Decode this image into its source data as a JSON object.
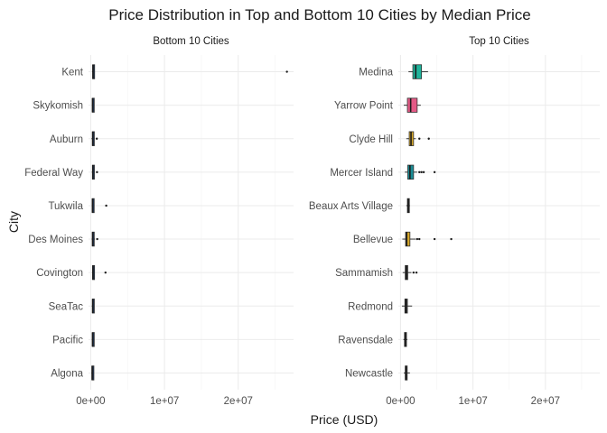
{
  "chart_data": {
    "type": "boxplot",
    "title": "Price Distribution in Top and Bottom 10 Cities by Median Price",
    "xlabel": "Price (USD)",
    "ylabel": "City",
    "xlim": [
      -300000,
      27500000
    ],
    "x_ticks": [
      0,
      10000000,
      20000000
    ],
    "x_tick_labels": [
      "0e+00",
      "1e+07",
      "2e+07"
    ],
    "grid": true,
    "legend": "none",
    "panels": [
      {
        "name": "Bottom 10 Cities",
        "cities": [
          {
            "city": "Kent",
            "stats": [
              180000,
              260000,
              310000,
              370000,
              520000
            ],
            "outliers": [
              26600000
            ],
            "color": "#1d3557"
          },
          {
            "city": "Skykomish",
            "stats": [
              170000,
              210000,
              250000,
              300000,
              380000
            ],
            "outliers": [],
            "color": "#1d3557"
          },
          {
            "city": "Auburn",
            "stats": [
              100000,
              220000,
              270000,
              340000,
              520000
            ],
            "outliers": [
              820000
            ],
            "color": "#1d3557"
          },
          {
            "city": "Federal Way",
            "stats": [
              150000,
              230000,
              280000,
              350000,
              540000
            ],
            "outliers": [
              850000
            ],
            "color": "#1d3557"
          },
          {
            "city": "Tukwila",
            "stats": [
              140000,
              200000,
              240000,
              300000,
              420000
            ],
            "outliers": [
              2100000
            ],
            "color": "#1d3557"
          },
          {
            "city": "Des Moines",
            "stats": [
              120000,
              210000,
              260000,
              340000,
              560000
            ],
            "outliers": [
              880000
            ],
            "color": "#1d3557"
          },
          {
            "city": "Covington",
            "stats": [
              170000,
              250000,
              300000,
              360000,
              500000
            ],
            "outliers": [
              2000000
            ],
            "color": "#1d3557"
          },
          {
            "city": "SeaTac",
            "stats": [
              140000,
              220000,
              270000,
              330000,
              480000
            ],
            "outliers": [],
            "color": "#1d3557"
          },
          {
            "city": "Pacific",
            "stats": [
              150000,
              210000,
              250000,
              300000,
              390000
            ],
            "outliers": [],
            "color": "#1d3557"
          },
          {
            "city": "Algona",
            "stats": [
              100000,
              160000,
              200000,
              250000,
              330000
            ],
            "outliers": [],
            "color": "#1d3557"
          }
        ]
      },
      {
        "name": "Top 10 Cities",
        "cities": [
          {
            "city": "Medina",
            "stats": [
              1100000,
              1700000,
              2100000,
              2900000,
              3800000
            ],
            "outliers": [],
            "color": "#1fb39a"
          },
          {
            "city": "Yarrow Point",
            "stats": [
              450000,
              950000,
              1400000,
              2300000,
              2800000
            ],
            "outliers": [],
            "color": "#e45a86"
          },
          {
            "city": "Clyde Hill",
            "stats": [
              800000,
              1200000,
              1450000,
              1800000,
              2100000
            ],
            "outliers": [
              2600000,
              3900000
            ],
            "color": "#d4a62a"
          },
          {
            "city": "Mercer Island",
            "stats": [
              600000,
              1000000,
              1300000,
              1800000,
              2300000
            ],
            "outliers": [
              2600000,
              2900000,
              3200000,
              4700000
            ],
            "color": "#1a8c95"
          },
          {
            "city": "Beaux Arts Village",
            "stats": [
              800000,
              950000,
              1050000,
              1150000,
              1300000
            ],
            "outliers": [],
            "color": "#3a3a3a"
          },
          {
            "city": "Bellevue",
            "stats": [
              250000,
              700000,
              850000,
              1300000,
              2100000
            ],
            "outliers": [
              2300000,
              2600000,
              4700000,
              7000000
            ],
            "color": "#d4a62a"
          },
          {
            "city": "Sammamish",
            "stats": [
              300000,
              650000,
              800000,
              1000000,
              1500000
            ],
            "outliers": [
              1800000,
              2200000
            ],
            "color": "#3a3a3a"
          },
          {
            "city": "Redmond",
            "stats": [
              200000,
              600000,
              750000,
              950000,
              1600000
            ],
            "outliers": [],
            "color": "#3a3a3a"
          },
          {
            "city": "Ravensdale",
            "stats": [
              400000,
              550000,
              650000,
              800000,
              950000
            ],
            "outliers": [],
            "color": "#3a3a3a"
          },
          {
            "city": "Newcastle",
            "stats": [
              450000,
              650000,
              750000,
              900000,
              1300000
            ],
            "outliers": [],
            "color": "#3a3a3a"
          }
        ]
      }
    ]
  }
}
